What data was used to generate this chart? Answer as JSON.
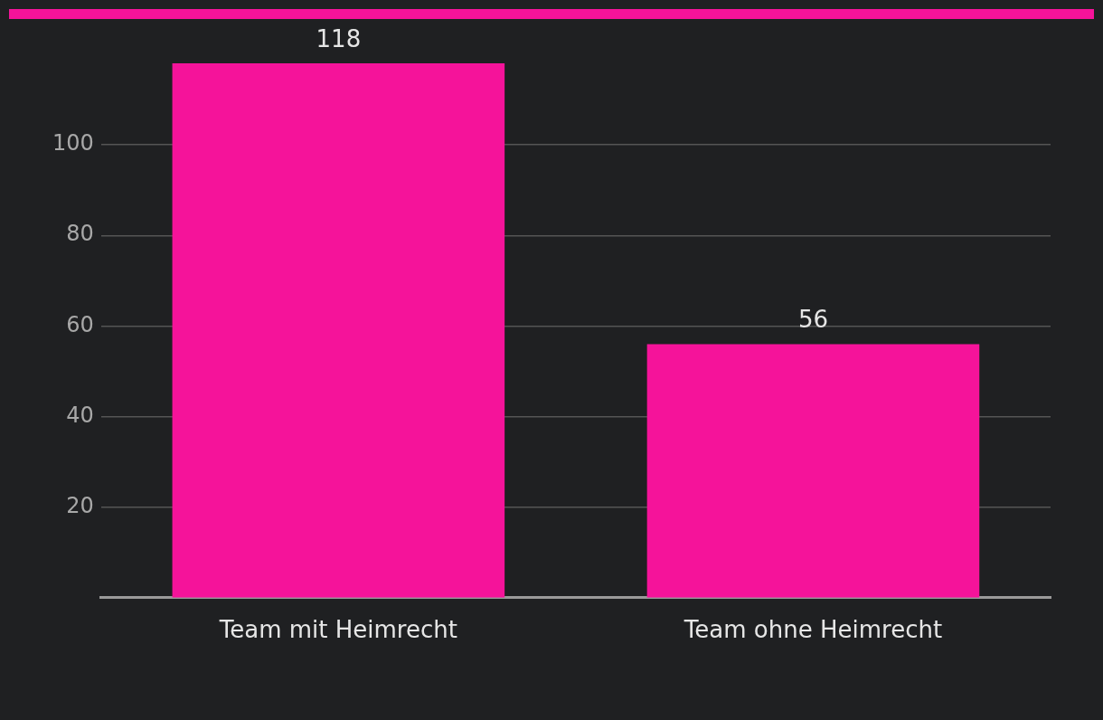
{
  "chart_data": {
    "type": "bar",
    "categories": [
      "Team mit Heimrecht",
      "Team ohne Heimrecht"
    ],
    "values": [
      118,
      56
    ],
    "color": "#f5139a",
    "ylim": [
      0,
      118
    ],
    "yticks": [
      20,
      40,
      60,
      80,
      100
    ],
    "grid": "y",
    "data_labels": true
  }
}
